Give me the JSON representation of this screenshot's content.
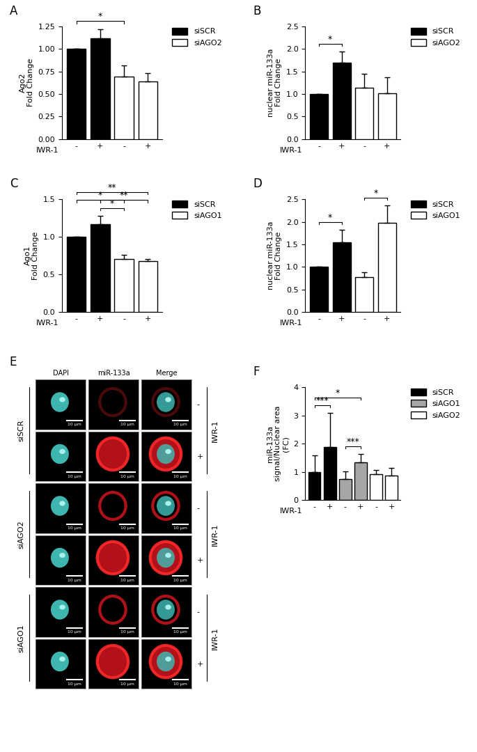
{
  "chart_data": [
    {
      "panel": "A",
      "type": "bar",
      "y_label": "Ago2\nFold Change",
      "x_label": "IWR-1",
      "categories": [
        "-",
        "+",
        "-",
        "+"
      ],
      "series": [
        {
          "name": "siSCR",
          "color": "#000000",
          "values": [
            1.0,
            1.12,
            null,
            null
          ],
          "errors": [
            0.0,
            0.1,
            null,
            null
          ]
        },
        {
          "name": "siAGO2",
          "color": "#ffffff",
          "values": [
            null,
            null,
            0.69,
            0.64
          ],
          "errors": [
            null,
            null,
            0.13,
            0.09
          ]
        }
      ],
      "ylim": [
        0,
        1.25
      ],
      "yticks": [
        {
          "value": 0,
          "label": "0.00"
        },
        {
          "value": 0.25,
          "label": "0.25"
        },
        {
          "value": 0.5,
          "label": "0.50"
        },
        {
          "value": 0.75,
          "label": "0.75"
        },
        {
          "value": 1.0,
          "label": "1.00"
        },
        {
          "value": 1.25,
          "label": "1.25"
        }
      ],
      "legend": "right",
      "significance": [
        {
          "from": 0,
          "to": 2,
          "text": "*"
        }
      ]
    },
    {
      "panel": "B",
      "type": "bar",
      "y_label": "nuclear miR-133a\nFold Change",
      "x_label": "IWR-1",
      "categories": [
        "-",
        "+",
        "-",
        "+"
      ],
      "series": [
        {
          "name": "siSCR",
          "color": "#000000",
          "values": [
            1.0,
            1.69,
            null,
            null
          ],
          "errors": [
            0.0,
            0.25,
            null,
            null
          ]
        },
        {
          "name": "siAGO2",
          "color": "#ffffff",
          "values": [
            null,
            null,
            1.14,
            1.02
          ],
          "errors": [
            null,
            null,
            0.3,
            0.35
          ]
        }
      ],
      "ylim": [
        0,
        2.5
      ],
      "yticks": [
        {
          "value": 0,
          "label": "0.0"
        },
        {
          "value": 0.5,
          "label": "0.5"
        },
        {
          "value": 1.0,
          "label": "1.0"
        },
        {
          "value": 1.5,
          "label": "1.5"
        },
        {
          "value": 2.0,
          "label": "2.0"
        },
        {
          "value": 2.5,
          "label": "2.5"
        }
      ],
      "legend": "right",
      "significance": [
        {
          "from": 0,
          "to": 1,
          "text": "*"
        }
      ]
    },
    {
      "panel": "C",
      "type": "bar",
      "y_label": "Ago1\nFold Change",
      "x_label": "IWR-1",
      "categories": [
        "-",
        "+",
        "-",
        "+"
      ],
      "series": [
        {
          "name": "siSCR",
          "color": "#000000",
          "values": [
            1.0,
            1.17,
            null,
            null
          ],
          "errors": [
            0.0,
            0.11,
            null,
            null
          ]
        },
        {
          "name": "siAGO1",
          "color": "#ffffff",
          "values": [
            null,
            null,
            0.71,
            0.68
          ],
          "errors": [
            null,
            null,
            0.05,
            0.03
          ]
        }
      ],
      "ylim": [
        0,
        1.5
      ],
      "yticks": [
        {
          "value": 0,
          "label": "0.0"
        },
        {
          "value": 0.5,
          "label": "0.5"
        },
        {
          "value": 1.0,
          "label": "1.0"
        },
        {
          "value": 1.5,
          "label": "1.5"
        }
      ],
      "legend": "right",
      "significance": [
        {
          "from": 1,
          "to": 2,
          "text": "*"
        },
        {
          "from": 0,
          "to": 2,
          "text": "*"
        },
        {
          "from": 1,
          "to": 3,
          "text": "**"
        },
        {
          "from": 0,
          "to": 3,
          "text": "**"
        }
      ]
    },
    {
      "panel": "D",
      "type": "bar",
      "y_label": "nuclear miR-133a\nFold Change",
      "x_label": "IWR-1",
      "categories": [
        "-",
        "+",
        "-",
        "+"
      ],
      "series": [
        {
          "name": "siSCR",
          "color": "#000000",
          "values": [
            1.0,
            1.54,
            null,
            null
          ],
          "errors": [
            0.0,
            0.28,
            null,
            null
          ]
        },
        {
          "name": "siAGO1",
          "color": "#ffffff",
          "values": [
            null,
            null,
            0.78,
            1.98
          ],
          "errors": [
            null,
            null,
            0.1,
            0.38
          ]
        }
      ],
      "ylim": [
        0,
        2.5
      ],
      "yticks": [
        {
          "value": 0,
          "label": "0.0"
        },
        {
          "value": 0.5,
          "label": "0.5"
        },
        {
          "value": 1.0,
          "label": "1.0"
        },
        {
          "value": 1.5,
          "label": "1.5"
        },
        {
          "value": 2.0,
          "label": "2.0"
        },
        {
          "value": 2.5,
          "label": "2.5"
        }
      ],
      "legend": "right",
      "significance": [
        {
          "from": 0,
          "to": 1,
          "text": "*"
        },
        {
          "from": 2,
          "to": 3,
          "text": "*"
        }
      ]
    },
    {
      "panel": "F",
      "type": "bar",
      "y_label": "miR-133a\nsignal/Nuclear area\n(FC)",
      "x_label": "IWR-1",
      "categories": [
        "-",
        "+",
        "-",
        "+",
        "-",
        "+"
      ],
      "series": [
        {
          "name": "siSCR",
          "color": "#000000",
          "values": [
            1.0,
            1.88,
            null,
            null,
            null,
            null
          ],
          "errors": [
            0.58,
            1.2,
            null,
            null,
            null,
            null
          ]
        },
        {
          "name": "siAGO1",
          "color": "#a6a6a6",
          "values": [
            null,
            null,
            0.74,
            1.33,
            null,
            null
          ],
          "errors": [
            null,
            null,
            0.28,
            0.3,
            null,
            null
          ]
        },
        {
          "name": "siAGO2",
          "color": "#ffffff",
          "values": [
            null,
            null,
            null,
            null,
            0.92,
            0.88
          ],
          "errors": [
            null,
            null,
            null,
            null,
            0.15,
            0.27
          ]
        }
      ],
      "ylim": [
        0,
        4
      ],
      "yticks": [
        0,
        1,
        2,
        3,
        4
      ],
      "legend": "right",
      "significance": [
        {
          "from": 0,
          "to": 1,
          "text": "***"
        },
        {
          "from": 2,
          "to": 3,
          "text": "***"
        },
        {
          "from": 0,
          "to": 3,
          "text": "*"
        }
      ]
    }
  ],
  "image_panel": {
    "panel": "E",
    "columns": [
      "DAPI",
      "miR-133a",
      "Merge"
    ],
    "row_groups": [
      "siSCR",
      "siAGO2",
      "siAGO1"
    ],
    "treatment": "IWR-1",
    "treatment_levels": [
      "-",
      "+"
    ],
    "scale_bar": "10 µm"
  }
}
